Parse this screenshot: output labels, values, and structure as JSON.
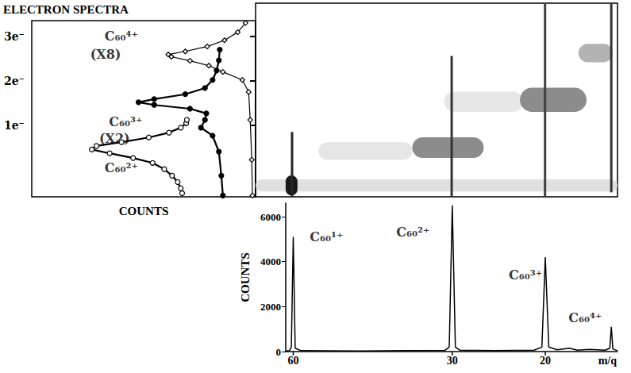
{
  "chart_data": [
    {
      "type": "line",
      "title": "ELECTRON SPECTRA",
      "xlabel": "COUNTS",
      "xlim": [
        100,
        0
      ],
      "ylim": [
        -0.6,
        3.35
      ],
      "yticks": [
        {
          "value": 1,
          "label": "1e⁻"
        },
        {
          "value": 2,
          "label": "2e⁻"
        },
        {
          "value": 3,
          "label": "3e⁻"
        }
      ],
      "tick_labels": "y",
      "series": [
        {
          "marker": "open_circle",
          "line_style": "solid",
          "color": "#000000",
          "x": [
            32.8,
            33.4,
            34.8,
            37.3,
            40.8,
            46.0,
            54.7,
            65.2,
            73.2,
            71.1,
            59.9,
            47.7,
            38.7,
            33.4,
            31.0,
            30.7
          ],
          "y": [
            -0.52,
            -0.41,
            -0.27,
            -0.125,
            0.02,
            0.16,
            0.27,
            0.375,
            0.46,
            0.54,
            0.625,
            0.73,
            0.84,
            0.95,
            1.05,
            1.125
          ]
        },
        {
          "marker": "filled_circle",
          "line_style": "solid",
          "color": "#000000",
          "x": [
            14.6,
            15.3,
            16.4,
            19.2,
            24.4,
            22.6,
            22.0,
            29.3,
            45.3,
            52.3,
            45.3,
            31.4,
            22.6,
            19.2,
            17.4,
            16.4,
            16.0
          ],
          "y": [
            -0.57,
            -0.125,
            0.41,
            0.77,
            0.95,
            1.125,
            1.27,
            1.375,
            1.46,
            1.52,
            1.59,
            1.7,
            1.84,
            2.02,
            2.23,
            2.46,
            2.7
          ]
        },
        {
          "marker": "open_diamond",
          "line_style": "solid",
          "color": "#000000",
          "x": [
            1.4,
            1.7,
            2.4,
            3.1,
            5.9,
            14.6,
            20.9,
            29.3,
            37.6,
            39.0,
            31.4,
            21.6,
            13.9,
            8.0,
            4.5
          ],
          "y": [
            -0.57,
            0.23,
            1.125,
            1.75,
            2.02,
            2.2,
            2.34,
            2.45,
            2.54,
            2.59,
            2.66,
            2.77,
            2.91,
            3.09,
            3.3
          ]
        }
      ],
      "annotations": [
        {
          "text": "C₆₀²⁺",
          "x": 60,
          "y": 0.05
        },
        {
          "text": "C₆₀³⁺",
          "x": 58,
          "y": 1.09
        },
        {
          "text": "(X2)",
          "x": 63,
          "y": 0.71
        },
        {
          "text": "C₆₀⁴⁺",
          "x": 60,
          "y": 3.0
        },
        {
          "text": "(X8)",
          "x": 67,
          "y": 2.6
        }
      ]
    },
    {
      "type": "heatmap",
      "log": "x",
      "xlim": [
        70.3,
        14.6
      ],
      "ylim": [
        -0.6,
        3.73
      ],
      "tick_labels": false,
      "blobs": [
        {
          "x": [
            70.3,
            14.6
          ],
          "y": [
            -0.48,
            -0.21
          ],
          "intensity": 0.12
        },
        {
          "x": [
            53.5,
            35.6
          ],
          "y": [
            0.23,
            0.62
          ],
          "intensity": 0.1
        },
        {
          "x": [
            31.0,
            22.0
          ],
          "y": [
            1.3,
            1.75
          ],
          "intensity": 0.1
        },
        {
          "x": [
            35.6,
            26.1
          ],
          "y": [
            0.27,
            0.73
          ],
          "intensity": 0.45
        },
        {
          "x": [
            22.3,
            16.7
          ],
          "y": [
            1.3,
            1.84
          ],
          "intensity": 0.45
        },
        {
          "x": [
            17.3,
            14.9
          ],
          "y": [
            2.41,
            2.82
          ],
          "intensity": 0.3
        },
        {
          "x": [
            61.7,
            58.6
          ],
          "y": [
            -0.57,
            -0.12
          ],
          "intensity": 0.9
        }
      ],
      "streaks": [
        {
          "x": 60,
          "y": [
            -0.6,
            0.85
          ],
          "intensity": 0.85
        },
        {
          "x": 30,
          "y": [
            -0.6,
            2.55
          ],
          "intensity": 0.8
        },
        {
          "x": 20,
          "y": [
            -0.6,
            3.73
          ],
          "intensity": 0.75
        },
        {
          "x": 15,
          "y": [
            -0.5,
            3.73
          ],
          "intensity": 0.8
        }
      ]
    },
    {
      "type": "line",
      "xlabel": "m/q",
      "ylabel": "COUNTS",
      "log": "x",
      "xlim": [
        62,
        14.6
      ],
      "xticks": [
        60,
        30,
        20
      ],
      "ylim": [
        0,
        6600
      ],
      "yticks": [
        0,
        2000,
        4000,
        6000
      ],
      "color": "#000000",
      "line_style": "solid",
      "x": [
        62,
        61,
        60.5,
        60,
        59.5,
        58,
        45,
        31,
        30.4,
        30,
        29.6,
        29,
        25,
        21,
        20.3,
        20,
        19.7,
        19,
        18,
        17.4,
        16.5,
        15.4,
        15.1,
        15,
        14.9,
        14.6
      ],
      "values": [
        30,
        40,
        200,
        5100,
        150,
        40,
        30,
        50,
        200,
        6500,
        200,
        60,
        40,
        60,
        200,
        4200,
        200,
        80,
        150,
        60,
        100,
        60,
        150,
        1100,
        120,
        40
      ],
      "annotations": [
        {
          "text": "C₆₀¹⁺",
          "x": 51.9,
          "y": 5100
        },
        {
          "text": "C₆₀²⁺",
          "x": 35.6,
          "y": 5300
        },
        {
          "text": "C₆₀³⁺",
          "x": 21.8,
          "y": 3400
        },
        {
          "text": "C₆₀⁴⁺",
          "x": 16.8,
          "y": 1500
        }
      ]
    }
  ]
}
